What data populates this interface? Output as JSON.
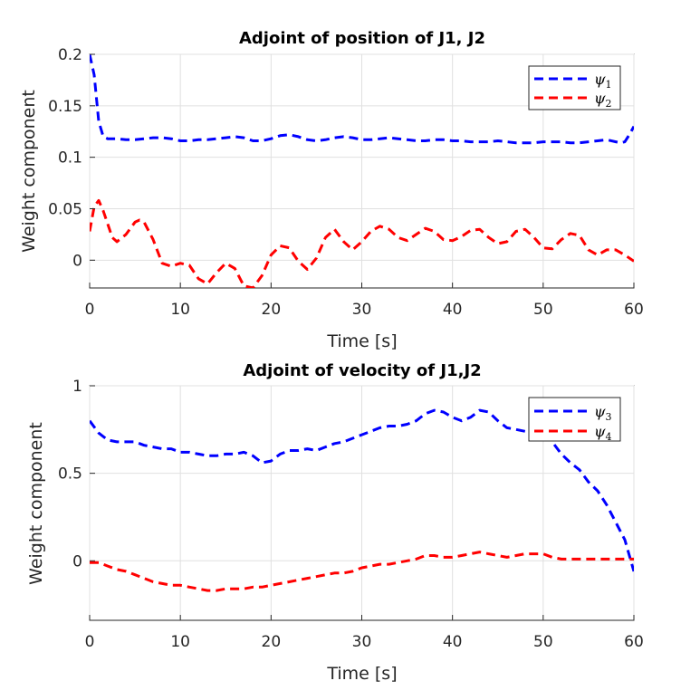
{
  "chart_data": [
    {
      "type": "line",
      "title": "Adjoint of position of J1, J2",
      "xlabel": "Time [s]",
      "ylabel": "Weight component",
      "xlim": [
        0,
        60
      ],
      "ylim": [
        -0.027,
        0.2
      ],
      "xticks": [
        0,
        10,
        20,
        30,
        40,
        50,
        60
      ],
      "yticks": [
        0,
        0.05,
        0.1,
        0.15,
        0.2
      ],
      "ytick_labels": [
        "0",
        "0.05",
        "0.1",
        "0.15",
        "0.2"
      ],
      "grid": true,
      "legend_position": "top-right",
      "series": [
        {
          "name": "ψ1",
          "symbol": "ψ",
          "subscript": "1",
          "color": "#0000ff",
          "style": "dashed",
          "x": [
            0,
            0.5,
            1,
            1.5,
            2,
            3,
            4,
            5,
            6,
            7,
            8,
            9,
            10,
            11,
            12,
            13,
            14,
            15,
            16,
            17,
            18,
            19,
            20,
            21,
            22,
            23,
            24,
            25,
            26,
            27,
            28,
            29,
            30,
            31,
            32,
            33,
            34,
            35,
            36,
            37,
            38,
            39,
            40,
            41,
            42,
            43,
            44,
            45,
            46,
            47,
            48,
            49,
            50,
            51,
            52,
            53,
            54,
            55,
            56,
            57,
            58,
            58.5,
            59,
            59.5,
            60
          ],
          "y": [
            0.2,
            0.18,
            0.135,
            0.12,
            0.118,
            0.118,
            0.117,
            0.117,
            0.118,
            0.119,
            0.119,
            0.118,
            0.116,
            0.116,
            0.117,
            0.117,
            0.118,
            0.119,
            0.12,
            0.119,
            0.116,
            0.116,
            0.118,
            0.121,
            0.122,
            0.12,
            0.117,
            0.116,
            0.117,
            0.119,
            0.12,
            0.119,
            0.117,
            0.117,
            0.118,
            0.119,
            0.118,
            0.117,
            0.116,
            0.116,
            0.117,
            0.117,
            0.116,
            0.116,
            0.115,
            0.115,
            0.115,
            0.116,
            0.115,
            0.114,
            0.114,
            0.114,
            0.115,
            0.115,
            0.115,
            0.114,
            0.114,
            0.115,
            0.116,
            0.117,
            0.115,
            0.114,
            0.115,
            0.122,
            0.13
          ]
        },
        {
          "name": "ψ2",
          "symbol": "ψ",
          "subscript": "2",
          "color": "#ff0000",
          "style": "dashed",
          "x": [
            0,
            0.5,
            1,
            1.5,
            2,
            2.5,
            3,
            4,
            5,
            5.5,
            6,
            7,
            8,
            9,
            10,
            11,
            12,
            13,
            14,
            15,
            16,
            17,
            18,
            19,
            20,
            21,
            22,
            23,
            24,
            25,
            26,
            27,
            28,
            29,
            30,
            31,
            32,
            33,
            34,
            35,
            36,
            37,
            38,
            39,
            40,
            41,
            42,
            43,
            44,
            45,
            46,
            47,
            48,
            49,
            50,
            51,
            52,
            53,
            54,
            55,
            56,
            57,
            58,
            59,
            60
          ],
          "y": [
            0.028,
            0.052,
            0.058,
            0.048,
            0.035,
            0.022,
            0.018,
            0.025,
            0.037,
            0.039,
            0.037,
            0.02,
            -0.003,
            -0.006,
            -0.003,
            -0.005,
            -0.018,
            -0.023,
            -0.012,
            -0.003,
            -0.008,
            -0.025,
            -0.027,
            -0.015,
            0.005,
            0.014,
            0.012,
            -0.001,
            -0.009,
            0.002,
            0.022,
            0.03,
            0.018,
            0.01,
            0.018,
            0.028,
            0.033,
            0.03,
            0.022,
            0.019,
            0.025,
            0.031,
            0.028,
            0.02,
            0.019,
            0.023,
            0.029,
            0.03,
            0.022,
            0.016,
            0.018,
            0.028,
            0.03,
            0.022,
            0.012,
            0.011,
            0.02,
            0.026,
            0.024,
            0.01,
            0.005,
            0.01,
            0.01,
            0.005,
            -0.001
          ]
        }
      ]
    },
    {
      "type": "line",
      "title": "Adjoint of velocity of J1,J2",
      "xlabel": "Time [s]",
      "ylabel": "Weight component",
      "xlim": [
        0,
        60
      ],
      "ylim": [
        -0.34,
        1
      ],
      "xticks": [
        0,
        10,
        20,
        30,
        40,
        50,
        60
      ],
      "yticks": [
        0,
        0.5,
        1
      ],
      "ytick_labels": [
        "0",
        "0.5",
        "1"
      ],
      "grid": true,
      "legend_position": "top-right",
      "series": [
        {
          "name": "ψ3",
          "symbol": "ψ",
          "subscript": "3",
          "color": "#0000ff",
          "style": "dashed",
          "x": [
            0,
            1,
            2,
            3,
            4,
            5,
            6,
            7,
            8,
            9,
            10,
            11,
            12,
            13,
            14,
            15,
            16,
            17,
            18,
            19,
            20,
            21,
            22,
            23,
            24,
            25,
            26,
            27,
            28,
            29,
            30,
            31,
            32,
            33,
            34,
            35,
            36,
            37,
            38,
            39,
            40,
            41,
            42,
            43,
            44,
            45,
            46,
            47,
            48,
            49,
            50,
            51,
            52,
            53,
            54,
            55,
            56,
            57,
            58,
            59,
            60
          ],
          "y": [
            0.8,
            0.73,
            0.69,
            0.68,
            0.68,
            0.68,
            0.66,
            0.65,
            0.64,
            0.64,
            0.62,
            0.62,
            0.61,
            0.6,
            0.6,
            0.61,
            0.61,
            0.62,
            0.6,
            0.56,
            0.57,
            0.61,
            0.63,
            0.63,
            0.64,
            0.63,
            0.65,
            0.67,
            0.68,
            0.7,
            0.72,
            0.74,
            0.76,
            0.77,
            0.77,
            0.78,
            0.8,
            0.84,
            0.86,
            0.85,
            0.82,
            0.8,
            0.82,
            0.86,
            0.85,
            0.8,
            0.76,
            0.75,
            0.74,
            0.74,
            0.73,
            0.68,
            0.61,
            0.56,
            0.52,
            0.45,
            0.4,
            0.32,
            0.22,
            0.12,
            -0.06
          ]
        },
        {
          "name": "ψ4",
          "symbol": "ψ",
          "subscript": "4",
          "color": "#ff0000",
          "style": "dashed",
          "x": [
            0,
            1,
            2,
            3,
            4,
            5,
            6,
            7,
            8,
            9,
            10,
            11,
            12,
            13,
            14,
            15,
            16,
            17,
            18,
            19,
            20,
            21,
            22,
            23,
            24,
            25,
            26,
            27,
            28,
            29,
            30,
            31,
            32,
            33,
            34,
            35,
            36,
            37,
            38,
            39,
            40,
            41,
            42,
            43,
            44,
            45,
            46,
            47,
            48,
            49,
            50,
            51,
            52,
            53,
            54,
            55,
            56,
            57,
            58,
            59,
            60
          ],
          "y": [
            -0.01,
            -0.01,
            -0.03,
            -0.05,
            -0.06,
            -0.08,
            -0.1,
            -0.12,
            -0.13,
            -0.14,
            -0.14,
            -0.15,
            -0.16,
            -0.17,
            -0.17,
            -0.16,
            -0.16,
            -0.16,
            -0.15,
            -0.15,
            -0.14,
            -0.13,
            -0.12,
            -0.11,
            -0.1,
            -0.09,
            -0.08,
            -0.07,
            -0.07,
            -0.06,
            -0.04,
            -0.03,
            -0.02,
            -0.02,
            -0.01,
            0,
            0.01,
            0.03,
            0.03,
            0.02,
            0.02,
            0.03,
            0.04,
            0.05,
            0.04,
            0.03,
            0.02,
            0.03,
            0.04,
            0.04,
            0.04,
            0.02,
            0.01,
            0.01,
            0.01,
            0.01,
            0.01,
            0.01,
            0.01,
            0.01,
            0.01
          ]
        }
      ]
    }
  ]
}
